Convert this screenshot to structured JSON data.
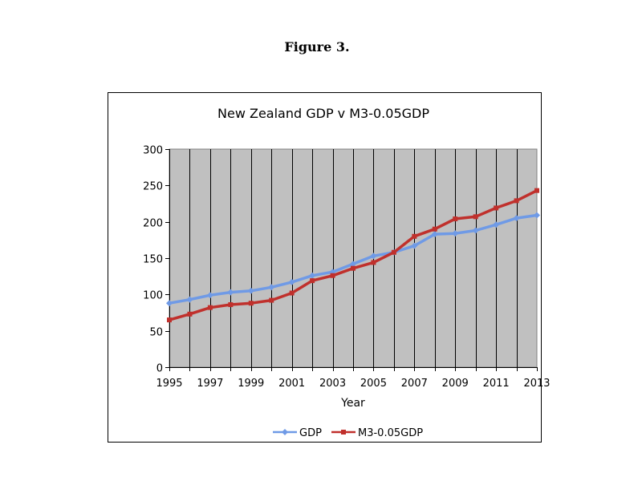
{
  "figure_caption": "Figure 3.",
  "chart_data": {
    "type": "line",
    "title": "New Zealand GDP v  M3-0.05GDP",
    "xlabel": "Year",
    "ylabel": "",
    "x": [
      1995,
      1996,
      1997,
      1998,
      1999,
      2000,
      2001,
      2002,
      2003,
      2004,
      2005,
      2006,
      2007,
      2008,
      2009,
      2010,
      2011,
      2012,
      2013
    ],
    "xticks": [
      "1995",
      "1997",
      "1999",
      "2001",
      "2003",
      "2005",
      "2007",
      "2009",
      "2011",
      "2013"
    ],
    "yticks": [
      "0",
      "50",
      "100",
      "150",
      "200",
      "250",
      "300"
    ],
    "ylim": [
      0,
      300
    ],
    "grid": "vertical",
    "plot_background": "#c0c0c0",
    "legend_position": "bottom",
    "series": [
      {
        "name": "GDP",
        "color": "#6f9ae6",
        "marker": "diamond",
        "values": [
          88,
          93,
          99,
          103,
          105,
          110,
          117,
          126,
          131,
          142,
          153,
          158,
          167,
          183,
          184,
          188,
          196,
          205,
          209
        ]
      },
      {
        "name": "M3-0.05GDP",
        "color": "#c0302c",
        "marker": "square",
        "values": [
          65,
          73,
          82,
          86,
          88,
          92,
          102,
          119,
          126,
          136,
          144,
          158,
          180,
          190,
          204,
          207,
          219,
          229,
          243
        ]
      }
    ]
  }
}
